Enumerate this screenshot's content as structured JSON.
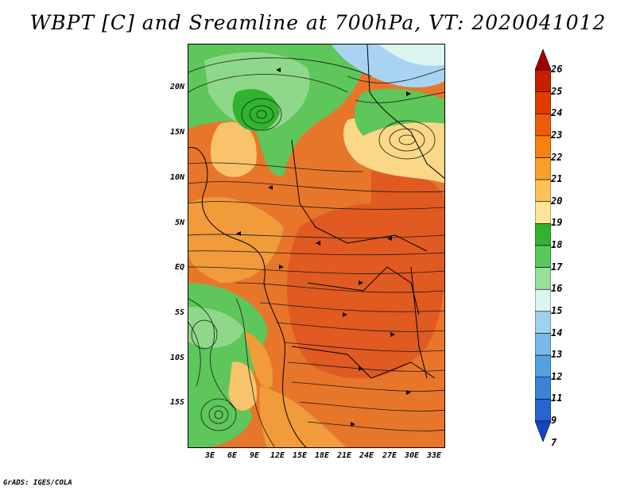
{
  "title": "WBPT [C] and Sreamline at 700hPa, VT: 2020041012",
  "credit": "GrADS: IGES/COLA",
  "lat_labels": [
    "20N",
    "15N",
    "10N",
    "5N",
    "EQ",
    "5S",
    "10S",
    "15S"
  ],
  "lon_labels": [
    "3E",
    "6E",
    "9E",
    "12E",
    "15E",
    "18E",
    "21E",
    "24E",
    "27E",
    "30E",
    "33E"
  ],
  "colorbar": {
    "labels": [
      "26",
      "25",
      "24",
      "23",
      "22",
      "21",
      "20",
      "19",
      "18",
      "17",
      "16",
      "15",
      "14",
      "13",
      "12",
      "11",
      "9",
      "7"
    ],
    "colors": [
      "#a50000",
      "#c81e00",
      "#e13c00",
      "#f05a0a",
      "#f5820f",
      "#f8a028",
      "#fbc35a",
      "#fde69b",
      "#30b430",
      "#5ac85a",
      "#96e196",
      "#dcf5f0",
      "#a0d2f0",
      "#78b9eb",
      "#55a0e1",
      "#3c82d7",
      "#2864cd",
      "#1446c3"
    ]
  },
  "field_colors": {
    "land_hot": "#e8762a",
    "core": "#e05a22",
    "warm": "#f19b3a",
    "mild": "#f8c36a",
    "cool_green": "#5ec65a",
    "mid_green": "#8fd88a",
    "sea_blue": "#a8d4f2"
  }
}
